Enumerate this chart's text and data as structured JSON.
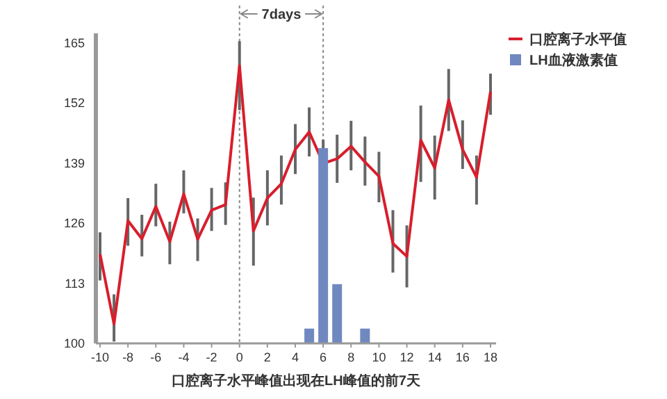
{
  "chart_data": {
    "type": "line",
    "xlabel": "口腔离子水平峰值出现在LH峰值的前7天",
    "x": [
      -10,
      -9,
      -8,
      -7,
      -6,
      -5,
      -4,
      -3,
      -2,
      -1,
      0,
      1,
      2,
      3,
      4,
      5,
      6,
      7,
      8,
      9,
      10,
      11,
      12,
      13,
      14,
      15,
      16,
      17,
      18
    ],
    "series": [
      {
        "name": "口腔离子水平值",
        "color": "#d81e2c",
        "values": [
          119.3,
          104.2,
          126.5,
          122.6,
          129.6,
          122,
          132.3,
          122.5,
          128.8,
          130,
          160,
          124.3,
          131.4,
          134.5,
          141.9,
          145.7,
          138.9,
          139.9,
          142.6,
          139.2,
          136.1,
          121.6,
          118.8,
          143.9,
          137.9,
          152.6,
          141.9,
          135.9,
          154.4
        ],
        "errors": [
          [
            113.6,
            124.0
          ],
          [
            100.4,
            110.6
          ],
          [
            121.1,
            131.4
          ],
          [
            118.8,
            127.8
          ],
          [
            125.3,
            134.5
          ],
          [
            117.1,
            126.3
          ],
          [
            128.1,
            137.4
          ],
          [
            117.8,
            127.0
          ],
          [
            124.3,
            133.6
          ],
          [
            125.6,
            134.8
          ],
          [
            150.4,
            165.3
          ],
          [
            116.8,
            131.5
          ],
          [
            125.5,
            137.4
          ],
          [
            130.0,
            140.6
          ],
          [
            136.6,
            147.4
          ],
          [
            140.4,
            151.0
          ],
          [
            138.9,
            144.0
          ],
          [
            134.7,
            145.1
          ],
          [
            137.4,
            148.1
          ],
          [
            134.1,
            144.7
          ],
          [
            130.5,
            141.4
          ],
          [
            115.3,
            128.8
          ],
          [
            112.1,
            125.5
          ],
          [
            134.9,
            151.4
          ],
          [
            131.1,
            144.9
          ],
          [
            145.9,
            159.3
          ],
          [
            137.7,
            148.2
          ],
          [
            130.0,
            140.6
          ],
          [
            149.4,
            158.3
          ]
        ]
      },
      {
        "name": "LH血液激素值",
        "type": "bar",
        "color": "#7088c0",
        "x": [
          5,
          6,
          7,
          9
        ],
        "values": [
          103.2,
          142.2,
          112.8,
          103.2
        ]
      }
    ],
    "xlim": [
      -10.3,
      18.4
    ],
    "xticks": [
      -10,
      -8,
      -6,
      -4,
      -2,
      0,
      2,
      4,
      6,
      8,
      10,
      12,
      14,
      16,
      18
    ],
    "ylim": [
      100,
      167
    ],
    "yticks": [
      100,
      113,
      126,
      139,
      152,
      165
    ],
    "ref_lines": [
      {
        "axis": "x",
        "value": 0,
        "color": "#888888",
        "line_style": "dotted"
      },
      {
        "axis": "x",
        "value": 6,
        "color": "#888888",
        "line_style": "dotted"
      }
    ],
    "annotations": [
      "7days"
    ],
    "legend": "top right",
    "grid": false
  }
}
